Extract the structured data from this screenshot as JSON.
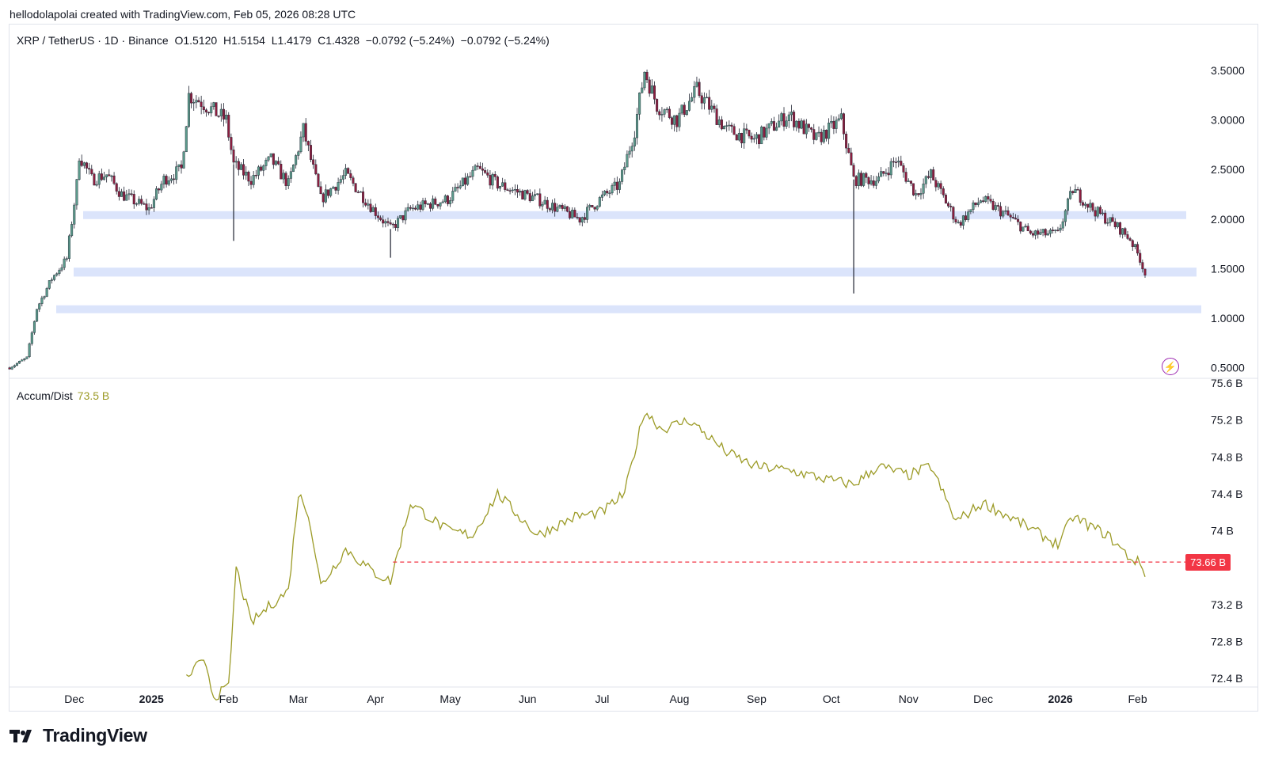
{
  "header": {
    "attribution": "hellodolapolai created with TradingView.com, Feb 05, 2026 08:28 UTC"
  },
  "legend": {
    "symbol": "XRP / TetherUS · 1D · Binance",
    "open": "O1.5120",
    "high": "H1.5154",
    "low": "L1.4179",
    "close": "C1.4328",
    "change1": "−0.0792 (−5.24%)",
    "change2": "−0.0792 (−5.24%)"
  },
  "indicator": {
    "name": "Accum/Dist",
    "value": "73.5 B",
    "last_label": "73.66 B"
  },
  "footer": {
    "brand": "TradingView"
  },
  "icons": {
    "lightning": "lightning-icon",
    "logo": "tradingview-logo-icon"
  },
  "colors": {
    "up": "#5b9a8b",
    "down": "#8b1e3f",
    "zone": "#dbe4fb",
    "ad_line": "#9c9b27",
    "ref_line": "#f23645"
  },
  "chart_data": [
    {
      "type": "candlestick",
      "title": "XRP / TetherUS · 1D · Binance",
      "x_tick_labels": [
        "Dec",
        "2025",
        "Feb",
        "Mar",
        "Apr",
        "May",
        "Jun",
        "Jul",
        "Aug",
        "Sep",
        "Oct",
        "Nov",
        "Dec",
        "2026",
        "Feb"
      ],
      "y_tick_labels": [
        "3.5000",
        "3.0000",
        "2.5000",
        "2.0000",
        "1.5000",
        "1.0000",
        "0.5000"
      ],
      "ylim": [
        0.45,
        3.8
      ],
      "grid": false,
      "price_path": [
        [
          "2024-11-05",
          0.5
        ],
        [
          "2024-11-12",
          0.6
        ],
        [
          "2024-11-16",
          1.1
        ],
        [
          "2024-11-22",
          1.4
        ],
        [
          "2024-11-28",
          1.6
        ],
        [
          "2024-12-02",
          2.35
        ],
        [
          "2024-12-03",
          2.65
        ],
        [
          "2024-12-08",
          2.4
        ],
        [
          "2024-12-14",
          2.45
        ],
        [
          "2024-12-20",
          2.25
        ],
        [
          "2024-12-31",
          2.1
        ],
        [
          "2025-01-06",
          2.4
        ],
        [
          "2025-01-13",
          2.5
        ],
        [
          "2025-01-16",
          3.25
        ],
        [
          "2025-01-20",
          3.2
        ],
        [
          "2025-01-31",
          3.0
        ],
        [
          "2025-02-03",
          2.55
        ],
        [
          "2025-02-10",
          2.4
        ],
        [
          "2025-02-18",
          2.6
        ],
        [
          "2025-02-25",
          2.35
        ],
        [
          "2025-03-03",
          2.9
        ],
        [
          "2025-03-10",
          2.2
        ],
        [
          "2025-03-20",
          2.45
        ],
        [
          "2025-03-31",
          2.1
        ],
        [
          "2025-04-07",
          1.9
        ],
        [
          "2025-04-15",
          2.1
        ],
        [
          "2025-04-30",
          2.2
        ],
        [
          "2025-05-12",
          2.5
        ],
        [
          "2025-05-20",
          2.35
        ],
        [
          "2025-06-05",
          2.2
        ],
        [
          "2025-06-22",
          2.0
        ],
        [
          "2025-06-30",
          2.2
        ],
        [
          "2025-07-08",
          2.35
        ],
        [
          "2025-07-14",
          2.9
        ],
        [
          "2025-07-18",
          3.5
        ],
        [
          "2025-07-23",
          3.15
        ],
        [
          "2025-07-31",
          3.0
        ],
        [
          "2025-08-08",
          3.3
        ],
        [
          "2025-08-20",
          2.9
        ],
        [
          "2025-08-31",
          2.8
        ],
        [
          "2025-09-14",
          3.05
        ],
        [
          "2025-09-25",
          2.8
        ],
        [
          "2025-10-05",
          3.0
        ],
        [
          "2025-10-10",
          2.4
        ],
        [
          "2025-10-20",
          2.4
        ],
        [
          "2025-10-27",
          2.6
        ],
        [
          "2025-11-04",
          2.25
        ],
        [
          "2025-11-10",
          2.45
        ],
        [
          "2025-11-21",
          1.95
        ],
        [
          "2025-11-30",
          2.2
        ],
        [
          "2025-12-10",
          2.05
        ],
        [
          "2025-12-20",
          1.85
        ],
        [
          "2025-12-31",
          1.85
        ],
        [
          "2026-01-06",
          2.3
        ],
        [
          "2026-01-14",
          2.1
        ],
        [
          "2026-01-24",
          1.92
        ],
        [
          "2026-01-29",
          1.8
        ],
        [
          "2026-02-02",
          1.6
        ],
        [
          "2026-02-04",
          1.43
        ]
      ],
      "last_candle": {
        "open": 1.512,
        "high": 1.5154,
        "low": 1.4179,
        "close": 1.4328,
        "change": -0.0792,
        "change_pct": -5.24
      },
      "support_zones": [
        {
          "from": 2.0,
          "to": 2.08
        },
        {
          "from": 1.42,
          "to": 1.51
        },
        {
          "from": 1.05,
          "to": 1.13
        }
      ],
      "notable_wicks": [
        {
          "date": "2025-02-03",
          "low": 1.78
        },
        {
          "date": "2025-04-07",
          "low": 1.61
        },
        {
          "date": "2025-10-10",
          "low": 1.25
        }
      ]
    },
    {
      "type": "line",
      "title": "Accum/Dist",
      "y_tick_labels": [
        "75.6 B",
        "75.2 B",
        "74.8 B",
        "74.4 B",
        "74 B",
        "73.2 B",
        "72.8 B",
        "72.4 B"
      ],
      "ylim": [
        72.0,
        75.6
      ],
      "unit": "B",
      "series": [
        {
          "values": [
            [
              "2025-01-15",
              72.4
            ],
            [
              "2025-01-20",
              72.55
            ],
            [
              "2025-01-23",
              72.55
            ],
            [
              "2025-01-26",
              72.2
            ],
            [
              "2025-02-01",
              72.3
            ],
            [
              "2025-02-04",
              73.6
            ],
            [
              "2025-02-10",
              73.0
            ],
            [
              "2025-02-18",
              73.2
            ],
            [
              "2025-02-25",
              73.35
            ],
            [
              "2025-03-01",
              74.4
            ],
            [
              "2025-03-05",
              74.2
            ],
            [
              "2025-03-10",
              73.4
            ],
            [
              "2025-03-20",
              73.8
            ],
            [
              "2025-03-31",
              73.55
            ],
            [
              "2025-04-07",
              73.45
            ],
            [
              "2025-04-15",
              74.3
            ],
            [
              "2025-04-30",
              74.0
            ],
            [
              "2025-05-10",
              73.95
            ],
            [
              "2025-05-20",
              74.4
            ],
            [
              "2025-06-05",
              73.95
            ],
            [
              "2025-06-20",
              74.15
            ],
            [
              "2025-07-01",
              74.2
            ],
            [
              "2025-07-10",
              74.4
            ],
            [
              "2025-07-18",
              75.3
            ],
            [
              "2025-07-25",
              75.1
            ],
            [
              "2025-08-05",
              75.2
            ],
            [
              "2025-08-20",
              74.85
            ],
            [
              "2025-08-31",
              74.7
            ],
            [
              "2025-09-15",
              74.65
            ],
            [
              "2025-09-30",
              74.55
            ],
            [
              "2025-10-10",
              74.5
            ],
            [
              "2025-10-20",
              74.7
            ],
            [
              "2025-11-01",
              74.6
            ],
            [
              "2025-11-10",
              74.7
            ],
            [
              "2025-11-20",
              74.1
            ],
            [
              "2025-12-01",
              74.3
            ],
            [
              "2025-12-15",
              74.1
            ],
            [
              "2025-12-31",
              73.85
            ],
            [
              "2026-01-06",
              74.15
            ],
            [
              "2026-01-20",
              73.95
            ],
            [
              "2026-01-29",
              73.7
            ],
            [
              "2026-02-02",
              73.65
            ],
            [
              "2026-02-04",
              73.5
            ]
          ]
        }
      ],
      "reference_line": {
        "value": 73.66,
        "start_date": "2025-04-08"
      }
    }
  ]
}
